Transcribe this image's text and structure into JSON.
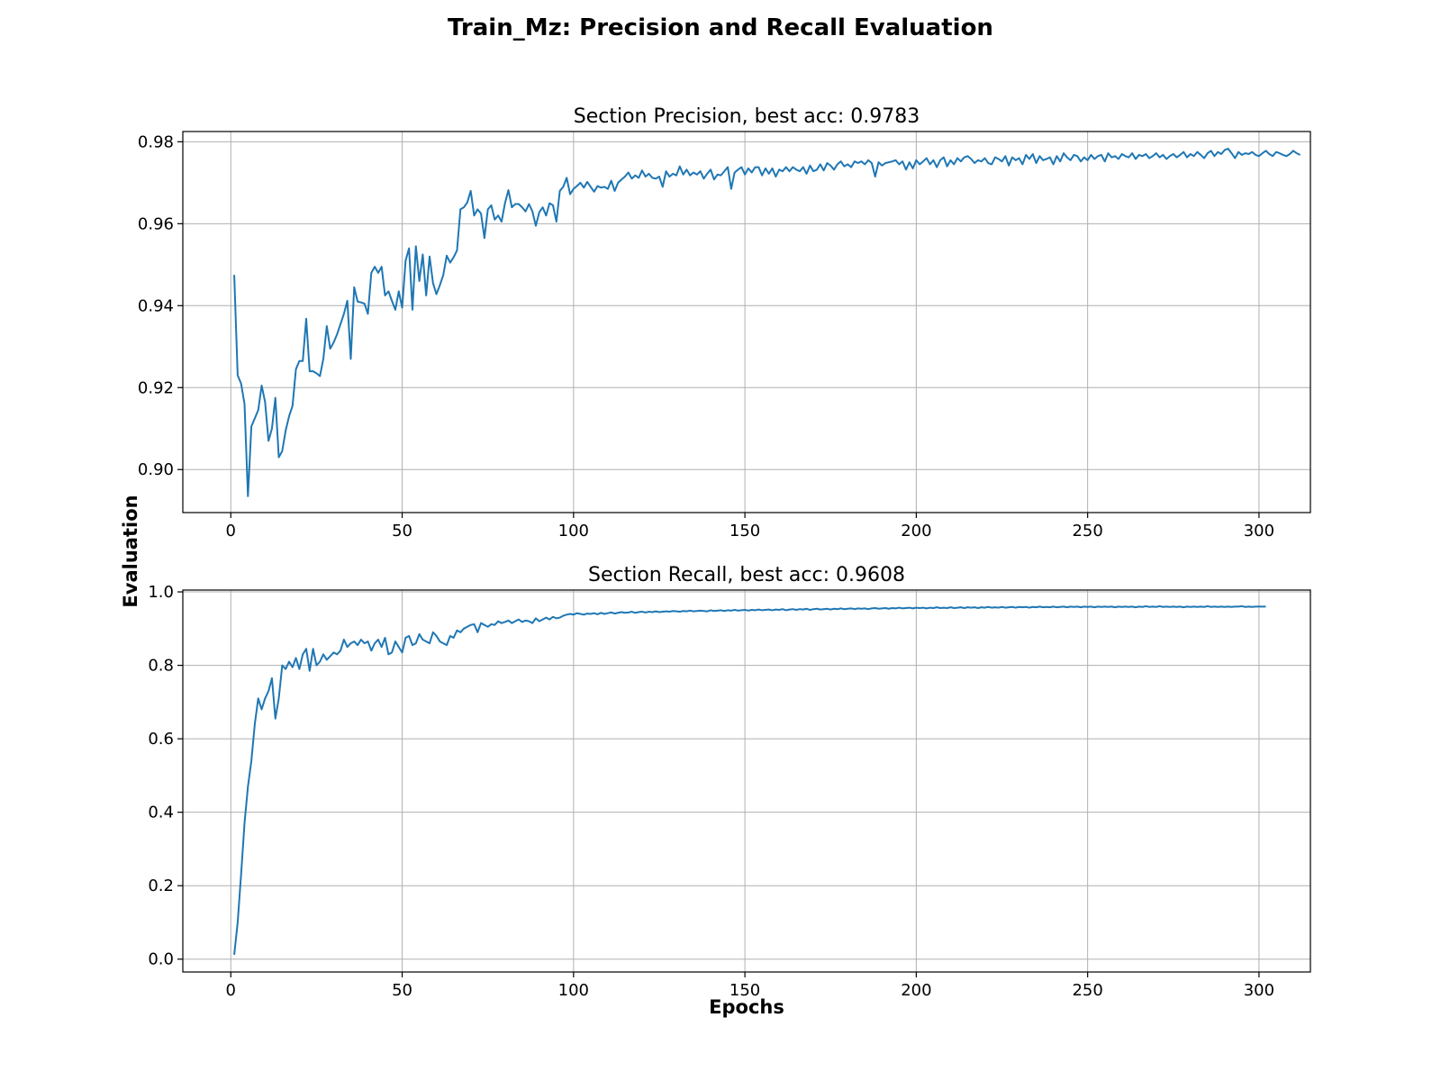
{
  "figure": {
    "title": "Train_Mz:  Precision and Recall Evaluation",
    "ylabel": "Evaluation",
    "xlabel": "Epochs"
  },
  "chart_data": [
    {
      "type": "line",
      "title": "Section Precision, best acc: 0.9783",
      "xlim": [
        -14,
        315
      ],
      "ylim": [
        0.8895,
        0.9825
      ],
      "xticks": [
        0,
        50,
        100,
        150,
        200,
        250,
        300
      ],
      "yticks": [
        0.9,
        0.92,
        0.94,
        0.96,
        0.98
      ],
      "ytick_labels": [
        "0.90",
        "0.92",
        "0.94",
        "0.96",
        "0.98"
      ],
      "grid": true,
      "color": "#1f77b4",
      "series": [
        {
          "x_start": 1,
          "x_step": 1,
          "values": [
            0.9475,
            0.923,
            0.921,
            0.916,
            0.8935,
            0.9105,
            0.9125,
            0.9145,
            0.9205,
            0.9165,
            0.907,
            0.91,
            0.9175,
            0.903,
            0.9045,
            0.9095,
            0.913,
            0.9155,
            0.9245,
            0.9265,
            0.9265,
            0.9368,
            0.924,
            0.924,
            0.9235,
            0.9228,
            0.927,
            0.935,
            0.9295,
            0.931,
            0.933,
            0.9355,
            0.938,
            0.9412,
            0.927,
            0.9445,
            0.941,
            0.9408,
            0.9405,
            0.938,
            0.948,
            0.9495,
            0.948,
            0.9495,
            0.9425,
            0.9435,
            0.9412,
            0.939,
            0.9435,
            0.9395,
            0.951,
            0.954,
            0.939,
            0.9545,
            0.946,
            0.9525,
            0.9425,
            0.952,
            0.9455,
            0.9428,
            0.945,
            0.9475,
            0.9522,
            0.9505,
            0.9518,
            0.9535,
            0.9635,
            0.964,
            0.9652,
            0.968,
            0.962,
            0.9635,
            0.9625,
            0.9565,
            0.9635,
            0.9645,
            0.961,
            0.962,
            0.9605,
            0.965,
            0.9682,
            0.964,
            0.9648,
            0.9648,
            0.964,
            0.963,
            0.9648,
            0.963,
            0.9595,
            0.9628,
            0.964,
            0.962,
            0.965,
            0.9645,
            0.9605,
            0.968,
            0.969,
            0.9712,
            0.9672,
            0.9685,
            0.9692,
            0.97,
            0.9688,
            0.9702,
            0.969,
            0.9678,
            0.9692,
            0.9688,
            0.969,
            0.9685,
            0.9705,
            0.968,
            0.97,
            0.9708,
            0.9715,
            0.9725,
            0.971,
            0.9718,
            0.9712,
            0.973,
            0.9715,
            0.9722,
            0.9712,
            0.971,
            0.9715,
            0.969,
            0.9728,
            0.9715,
            0.9722,
            0.9718,
            0.974,
            0.972,
            0.9732,
            0.9718,
            0.9725,
            0.972,
            0.9728,
            0.971,
            0.9722,
            0.9732,
            0.9708,
            0.972,
            0.9718,
            0.9728,
            0.9738,
            0.9685,
            0.9725,
            0.9732,
            0.9738,
            0.972,
            0.9735,
            0.9725,
            0.9738,
            0.9738,
            0.9718,
            0.9735,
            0.9722,
            0.9735,
            0.9715,
            0.9732,
            0.9728,
            0.9738,
            0.9728,
            0.9738,
            0.9732,
            0.9728,
            0.9738,
            0.9722,
            0.9742,
            0.9728,
            0.9732,
            0.9745,
            0.973,
            0.9748,
            0.9742,
            0.9732,
            0.9745,
            0.9752,
            0.974,
            0.9745,
            0.9738,
            0.9752,
            0.9748,
            0.9752,
            0.9745,
            0.9755,
            0.9748,
            0.9715,
            0.975,
            0.9742,
            0.9748,
            0.975,
            0.9752,
            0.9755,
            0.9745,
            0.9752,
            0.9732,
            0.975,
            0.9735,
            0.9755,
            0.9745,
            0.9752,
            0.976,
            0.9745,
            0.9755,
            0.9738,
            0.9755,
            0.9762,
            0.974,
            0.9755,
            0.9745,
            0.976,
            0.9752,
            0.9762,
            0.9765,
            0.9758,
            0.9748,
            0.9755,
            0.9752,
            0.976,
            0.9748,
            0.9745,
            0.9762,
            0.9758,
            0.9752,
            0.9765,
            0.9742,
            0.9762,
            0.9755,
            0.976,
            0.9745,
            0.9768,
            0.9758,
            0.977,
            0.9748,
            0.9765,
            0.9755,
            0.9758,
            0.9762,
            0.9745,
            0.9765,
            0.9752,
            0.9772,
            0.9762,
            0.9755,
            0.9768,
            0.9765,
            0.9752,
            0.9762,
            0.9755,
            0.9768,
            0.9758,
            0.9765,
            0.9768,
            0.9752,
            0.9772,
            0.9762,
            0.9765,
            0.9758,
            0.977,
            0.9765,
            0.9762,
            0.9772,
            0.9758,
            0.9768,
            0.9765,
            0.977,
            0.976,
            0.9765,
            0.9772,
            0.9762,
            0.9768,
            0.9758,
            0.9765,
            0.977,
            0.9762,
            0.9768,
            0.9775,
            0.9762,
            0.977,
            0.9765,
            0.9775,
            0.9768,
            0.976,
            0.9772,
            0.9778,
            0.9765,
            0.9775,
            0.977,
            0.978,
            0.9783,
            0.9772,
            0.976,
            0.9775,
            0.9768,
            0.9772,
            0.977,
            0.9775,
            0.9768,
            0.9765,
            0.9772,
            0.9778,
            0.977,
            0.9765,
            0.9775,
            0.9772,
            0.9768,
            0.9765,
            0.977,
            0.9778,
            0.9772,
            0.9768
          ]
        }
      ]
    },
    {
      "type": "line",
      "title": "Section Recall, best acc: 0.9608",
      "xlim": [
        -14,
        315
      ],
      "ylim": [
        -0.035,
        1.005
      ],
      "xticks": [
        0,
        50,
        100,
        150,
        200,
        250,
        300
      ],
      "yticks": [
        0.0,
        0.2,
        0.4,
        0.6,
        0.8,
        1.0
      ],
      "ytick_labels": [
        "0.0",
        "0.2",
        "0.4",
        "0.6",
        "0.8",
        "1.0"
      ],
      "grid": true,
      "color": "#1f77b4",
      "series": [
        {
          "x_start": 1,
          "x_step": 1,
          "values": [
            0.012,
            0.1,
            0.23,
            0.37,
            0.47,
            0.54,
            0.64,
            0.71,
            0.68,
            0.71,
            0.73,
            0.765,
            0.655,
            0.71,
            0.8,
            0.79,
            0.81,
            0.795,
            0.82,
            0.79,
            0.83,
            0.845,
            0.785,
            0.845,
            0.8,
            0.81,
            0.83,
            0.815,
            0.825,
            0.835,
            0.83,
            0.84,
            0.87,
            0.85,
            0.86,
            0.865,
            0.855,
            0.87,
            0.86,
            0.865,
            0.84,
            0.86,
            0.87,
            0.85,
            0.875,
            0.83,
            0.835,
            0.865,
            0.85,
            0.835,
            0.875,
            0.88,
            0.855,
            0.86,
            0.885,
            0.87,
            0.865,
            0.86,
            0.89,
            0.88,
            0.865,
            0.86,
            0.855,
            0.88,
            0.875,
            0.895,
            0.89,
            0.9,
            0.905,
            0.91,
            0.912,
            0.89,
            0.915,
            0.91,
            0.905,
            0.912,
            0.91,
            0.92,
            0.915,
            0.918,
            0.922,
            0.915,
            0.92,
            0.925,
            0.918,
            0.922,
            0.92,
            0.915,
            0.928,
            0.92,
            0.925,
            0.93,
            0.925,
            0.932,
            0.928,
            0.93,
            0.935,
            0.938,
            0.94,
            0.938,
            0.942,
            0.94,
            0.938,
            0.941,
            0.94,
            0.942,
            0.939,
            0.943,
            0.94,
            0.942,
            0.944,
            0.941,
            0.943,
            0.945,
            0.943,
            0.944,
            0.946,
            0.943,
            0.945,
            0.946,
            0.944,
            0.946,
            0.945,
            0.947,
            0.945,
            0.946,
            0.947,
            0.946,
            0.948,
            0.947,
            0.946,
            0.948,
            0.947,
            0.949,
            0.947,
            0.948,
            0.949,
            0.948,
            0.947,
            0.95,
            0.948,
            0.949,
            0.95,
            0.948,
            0.95,
            0.949,
            0.951,
            0.949,
            0.95,
            0.951,
            0.949,
            0.951,
            0.95,
            0.952,
            0.95,
            0.951,
            0.952,
            0.95,
            0.952,
            0.951,
            0.953,
            0.95,
            0.952,
            0.953,
            0.951,
            0.953,
            0.952,
            0.954,
            0.951,
            0.953,
            0.954,
            0.952,
            0.953,
            0.954,
            0.952,
            0.954,
            0.953,
            0.955,
            0.953,
            0.954,
            0.955,
            0.953,
            0.955,
            0.954,
            0.955,
            0.953,
            0.955,
            0.956,
            0.954,
            0.955,
            0.956,
            0.954,
            0.956,
            0.955,
            0.957,
            0.955,
            0.956,
            0.957,
            0.955,
            0.957,
            0.956,
            0.957,
            0.955,
            0.957,
            0.956,
            0.958,
            0.956,
            0.957,
            0.956,
            0.958,
            0.956,
            0.957,
            0.958,
            0.956,
            0.958,
            0.957,
            0.958,
            0.956,
            0.958,
            0.957,
            0.959,
            0.957,
            0.958,
            0.957,
            0.959,
            0.957,
            0.958,
            0.959,
            0.957,
            0.959,
            0.958,
            0.959,
            0.957,
            0.959,
            0.958,
            0.96,
            0.958,
            0.959,
            0.958,
            0.96,
            0.958,
            0.959,
            0.96,
            0.958,
            0.96,
            0.959,
            0.96,
            0.958,
            0.96,
            0.959,
            0.96,
            0.958,
            0.96,
            0.959,
            0.96,
            0.959,
            0.96,
            0.958,
            0.96,
            0.959,
            0.96,
            0.959,
            0.96,
            0.958,
            0.96,
            0.959,
            0.961,
            0.959,
            0.96,
            0.959,
            0.961,
            0.959,
            0.96,
            0.959,
            0.96,
            0.959,
            0.96,
            0.958,
            0.96,
            0.959,
            0.96,
            0.959,
            0.96,
            0.959,
            0.961,
            0.959,
            0.96,
            0.959,
            0.96,
            0.959,
            0.96,
            0.959,
            0.96,
            0.96,
            0.961,
            0.959,
            0.96,
            0.959,
            0.96,
            0.96,
            0.96,
            0.96
          ]
        }
      ]
    }
  ]
}
